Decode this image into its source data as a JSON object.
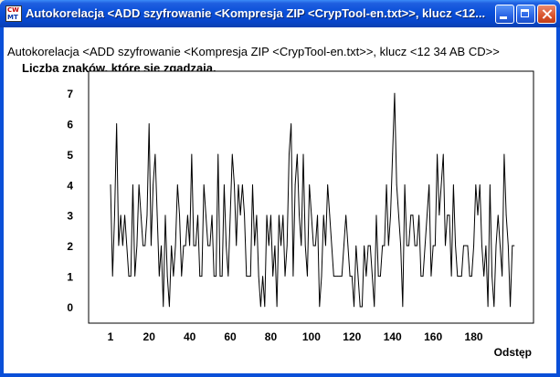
{
  "window": {
    "title": "Autokorelacja <ADD szyfrowanie <Kompresja ZIP <CrypTool-en.txt>>, klucz <12...",
    "icon_top": "CW",
    "icon_bottom": "MT"
  },
  "chart_data": {
    "type": "line",
    "title": "Autokorelacja <ADD szyfrowanie <Kompresja ZIP <CrypTool-en.txt>>, klucz <12 34 AB CD>>",
    "subtitle": "Liczba znaków, które się zgadzają.",
    "xlabel": "Odstęp",
    "ylabel": "",
    "xlim": [
      1,
      200
    ],
    "ylim": [
      0,
      7
    ],
    "x_ticks": [
      1,
      20,
      40,
      60,
      80,
      100,
      120,
      140,
      160,
      180
    ],
    "x_tick_labels": [
      "1",
      "20",
      "40",
      "60",
      "80",
      "100",
      "120",
      "140",
      "160",
      "180"
    ],
    "y_ticks": [
      0,
      1,
      2,
      3,
      4,
      5,
      6,
      7
    ],
    "y_tick_labels": [
      "0",
      "1",
      "2",
      "3",
      "4",
      "5",
      "6",
      "7"
    ],
    "grid": false,
    "series": [
      {
        "name": "Autokorelacja",
        "values": [
          4,
          1,
          3,
          6,
          2,
          3,
          2,
          3,
          2,
          1,
          1,
          4,
          1,
          2,
          4,
          3,
          2,
          2,
          3,
          6,
          2,
          4,
          5,
          3,
          1,
          2,
          0,
          3,
          1,
          0,
          2,
          1,
          2,
          4,
          3,
          1,
          2,
          2,
          3,
          2,
          5,
          2,
          2,
          3,
          1,
          1,
          4,
          3,
          2,
          2,
          3,
          1,
          1,
          5,
          1,
          1,
          4,
          2,
          1,
          3,
          5,
          4,
          2,
          4,
          3,
          4,
          3,
          1,
          1,
          1,
          4,
          2,
          3,
          1,
          0,
          1,
          0,
          3,
          2,
          3,
          1,
          2,
          0,
          3,
          2,
          3,
          1,
          2,
          5,
          6,
          1,
          4,
          5,
          3,
          2,
          5,
          2,
          1,
          4,
          3,
          2,
          2,
          3,
          0,
          1,
          3,
          2,
          4,
          3,
          2,
          1,
          1,
          1,
          1,
          1,
          2,
          3,
          2,
          1,
          1,
          0,
          2,
          1,
          0,
          0,
          2,
          1,
          2,
          2,
          1,
          0,
          3,
          1,
          1,
          2,
          2,
          4,
          2,
          3,
          5,
          7,
          4,
          3,
          2,
          0,
          4,
          2,
          2,
          3,
          3,
          2,
          2,
          3,
          1,
          1,
          2,
          3,
          4,
          1,
          2,
          2,
          5,
          3,
          4,
          5,
          2,
          3,
          3,
          1,
          4,
          2,
          1,
          1,
          1,
          2,
          2,
          2,
          1,
          1,
          2,
          4,
          3,
          4,
          2,
          1,
          2,
          0,
          4,
          1,
          0,
          2,
          3,
          2,
          1,
          5,
          3,
          2,
          0,
          2,
          2
        ]
      }
    ]
  }
}
